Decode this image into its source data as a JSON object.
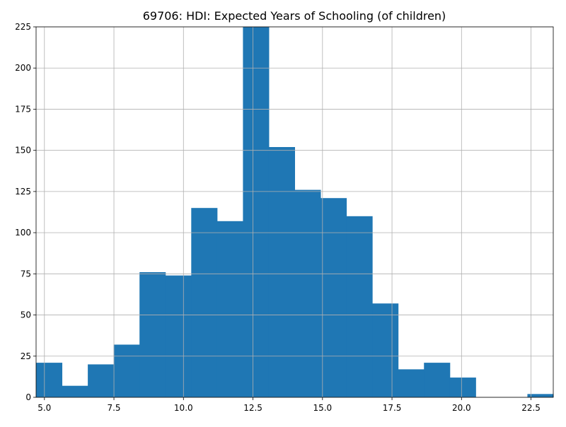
{
  "chart_data": {
    "type": "bar",
    "title": "69706: HDI: Expected Years of Schooling (of children)",
    "xlabel": "",
    "ylabel": "",
    "xlim": [
      4.7,
      23.3
    ],
    "ylim": [
      0,
      225
    ],
    "grid": true,
    "bar_color": "#1f77b4",
    "grid_color": "#b0b0b0",
    "bin_edges": [
      4.7,
      5.63,
      6.56,
      7.49,
      8.42,
      9.35,
      10.28,
      11.21,
      12.14,
      13.07,
      14.0,
      14.93,
      15.86,
      16.79,
      17.72,
      18.65,
      19.58,
      20.51,
      21.44,
      22.37,
      23.3
    ],
    "counts": [
      21,
      7,
      20,
      32,
      76,
      74,
      115,
      107,
      225,
      152,
      126,
      121,
      110,
      57,
      17,
      21,
      12,
      0,
      0,
      2
    ],
    "x_ticks": [
      "5.0",
      "7.5",
      "10.0",
      "12.5",
      "15.0",
      "17.5",
      "20.0",
      "22.5"
    ],
    "x_tick_values": [
      5.0,
      7.5,
      10.0,
      12.5,
      15.0,
      17.5,
      20.0,
      22.5
    ],
    "y_ticks": [
      "0",
      "25",
      "50",
      "75",
      "100",
      "125",
      "150",
      "175",
      "200",
      "225"
    ],
    "y_tick_values": [
      0,
      25,
      50,
      75,
      100,
      125,
      150,
      175,
      200,
      225
    ]
  }
}
